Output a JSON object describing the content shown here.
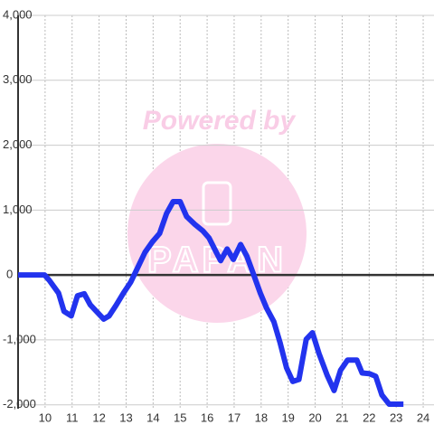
{
  "chart_data": {
    "type": "line",
    "watermark": "Powered by",
    "watermark_brand": "PAPAN",
    "x": [
      9,
      9.98,
      10.15,
      10.5,
      10.7,
      10.97,
      11.2,
      11.45,
      11.67,
      11.9,
      12.17,
      12.37,
      12.64,
      12.9,
      13.17,
      13.47,
      13.7,
      13.97,
      14.24,
      14.5,
      14.74,
      15.0,
      15.24,
      15.54,
      15.84,
      16.07,
      16.3,
      16.5,
      16.74,
      16.97,
      17.24,
      17.47,
      17.7,
      17.97,
      18.2,
      18.47,
      18.7,
      18.94,
      19.17,
      19.4,
      19.67,
      19.9,
      20.14,
      20.44,
      20.7,
      20.94,
      21.2,
      21.54,
      21.74,
      22.0,
      22.24,
      22.47,
      22.74,
      23.27
    ],
    "series": [
      {
        "color": "#2233ee",
        "values": [
          0,
          0,
          -80,
          -280,
          -560,
          -630,
          -320,
          -290,
          -460,
          -560,
          -680,
          -630,
          -460,
          -280,
          -110,
          150,
          350,
          510,
          640,
          950,
          1130,
          1130,
          900,
          780,
          680,
          570,
          380,
          220,
          400,
          240,
          470,
          290,
          30,
          -280,
          -510,
          -720,
          -1040,
          -1430,
          -1640,
          -1610,
          -990,
          -890,
          -1210,
          -1540,
          -1780,
          -1470,
          -1310,
          -1310,
          -1510,
          -1520,
          -1560,
          -1850,
          -1990,
          -1990
        ]
      }
    ],
    "xlim": [
      9,
      24.4
    ],
    "xticks": [
      10,
      11,
      12,
      13,
      14,
      15,
      16,
      17,
      18,
      19,
      20,
      21,
      22,
      23,
      24
    ],
    "ylim": [
      -2060,
      4000
    ],
    "yticks": [
      {
        "value": 4000,
        "label": "4,000"
      },
      {
        "value": 3000,
        "label": "3,000"
      },
      {
        "value": 2000,
        "label": "2,000"
      },
      {
        "value": 1000,
        "label": "1,000"
      },
      0,
      {
        "value": -1000,
        "label": "-1,000"
      },
      {
        "value": -2000,
        "label": "-2,000"
      }
    ],
    "grid": true
  }
}
